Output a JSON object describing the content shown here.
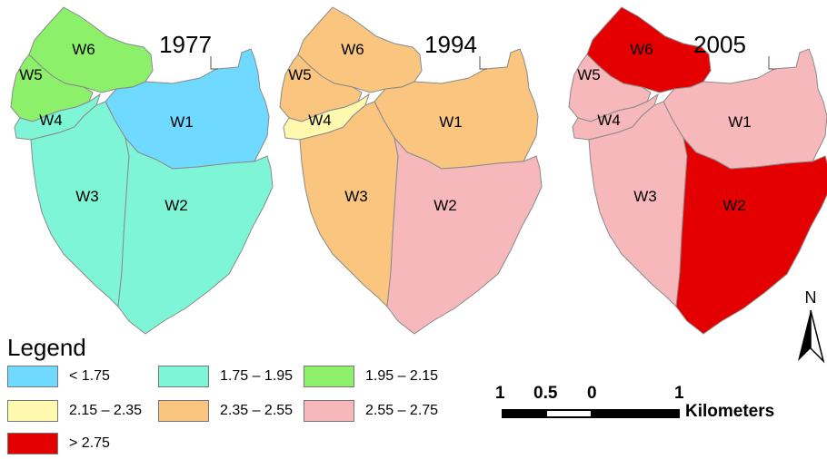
{
  "colors": {
    "lt_1_75": "#6fd9ff",
    "c_1_75_1_95": "#7ff5d8",
    "c_1_95_2_15": "#8cf06b",
    "c_2_15_2_35": "#fff9b0",
    "c_2_35_2_55": "#f9c57f",
    "c_2_55_2_75": "#f7b8bb",
    "gt_2_75": "#e40000",
    "border": "#8a8a8a"
  },
  "maps": [
    {
      "year": "1977",
      "wards": {
        "W1": "lt_1_75",
        "W2": "c_1_75_1_95",
        "W3": "c_1_75_1_95",
        "W4": "c_1_75_1_95",
        "W5": "c_1_95_2_15",
        "W6": "c_1_95_2_15"
      }
    },
    {
      "year": "1994",
      "wards": {
        "W1": "c_2_35_2_55",
        "W2": "c_2_55_2_75",
        "W3": "c_2_35_2_55",
        "W4": "c_2_15_2_35",
        "W5": "c_2_35_2_55",
        "W6": "c_2_35_2_55"
      }
    },
    {
      "year": "2005",
      "wards": {
        "W1": "c_2_55_2_75",
        "W2": "gt_2_75",
        "W3": "c_2_55_2_75",
        "W4": "c_2_55_2_75",
        "W5": "c_2_55_2_75",
        "W6": "gt_2_75"
      }
    }
  ],
  "legend": {
    "title": "Legend",
    "items": [
      {
        "label": "< 1.75",
        "color": "lt_1_75"
      },
      {
        "label": "1.75 – 1.95",
        "color": "c_1_75_1_95"
      },
      {
        "label": "1.95 – 2.15",
        "color": "c_1_95_2_15"
      },
      {
        "label": "2.15 – 2.35",
        "color": "c_2_15_2_35"
      },
      {
        "label": "2.35 – 2.55",
        "color": "c_2_35_2_55"
      },
      {
        "label": "2.55 – 2.75",
        "color": "c_2_55_2_75"
      },
      {
        "label": "> 2.75",
        "color": "gt_2_75"
      }
    ]
  },
  "scale": {
    "ticks": [
      "1",
      "0.5",
      "0",
      "1"
    ],
    "unit": "Kilometers"
  },
  "north_label": "N"
}
